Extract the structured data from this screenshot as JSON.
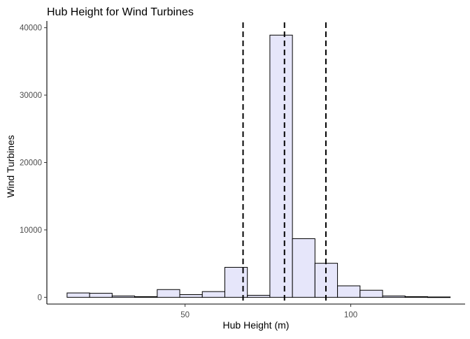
{
  "chart_data": {
    "type": "bar",
    "title": "Hub Height for Wind Turbines",
    "xlabel": "Hub Height (m)",
    "ylabel": "Wind Turbines",
    "bin_width": 6.8,
    "bins": [
      {
        "start": 14.4,
        "end": 21.2,
        "count": 650
      },
      {
        "start": 21.2,
        "end": 28.0,
        "count": 600
      },
      {
        "start": 28.0,
        "end": 34.8,
        "count": 200
      },
      {
        "start": 34.8,
        "end": 41.6,
        "count": 100
      },
      {
        "start": 41.6,
        "end": 48.4,
        "count": 1150
      },
      {
        "start": 48.4,
        "end": 55.2,
        "count": 400
      },
      {
        "start": 55.2,
        "end": 62.0,
        "count": 850
      },
      {
        "start": 62.0,
        "end": 68.8,
        "count": 4450
      },
      {
        "start": 68.8,
        "end": 75.6,
        "count": 300
      },
      {
        "start": 75.6,
        "end": 82.4,
        "count": 38900
      },
      {
        "start": 82.4,
        "end": 89.2,
        "count": 8700
      },
      {
        "start": 89.2,
        "end": 96.0,
        "count": 5050
      },
      {
        "start": 96.0,
        "end": 102.8,
        "count": 1700
      },
      {
        "start": 102.8,
        "end": 109.6,
        "count": 1050
      },
      {
        "start": 109.6,
        "end": 116.4,
        "count": 200
      },
      {
        "start": 116.4,
        "end": 123.2,
        "count": 100
      },
      {
        "start": 123.2,
        "end": 130.0,
        "count": 50
      }
    ],
    "reference_lines": [
      {
        "x": 67.5,
        "style": "dashed"
      },
      {
        "x": 80.0,
        "style": "dashed"
      },
      {
        "x": 92.5,
        "style": "dashed"
      }
    ],
    "xlim": [
      8.3,
      134.5
    ],
    "ylim": [
      -1000,
      41000
    ],
    "x_ticks": [
      50,
      100
    ],
    "y_ticks": [
      0,
      10000,
      20000,
      30000,
      40000
    ],
    "bar_fill": "#e6e6fa",
    "bar_stroke": "#000000",
    "grid": false,
    "legend": "none"
  }
}
